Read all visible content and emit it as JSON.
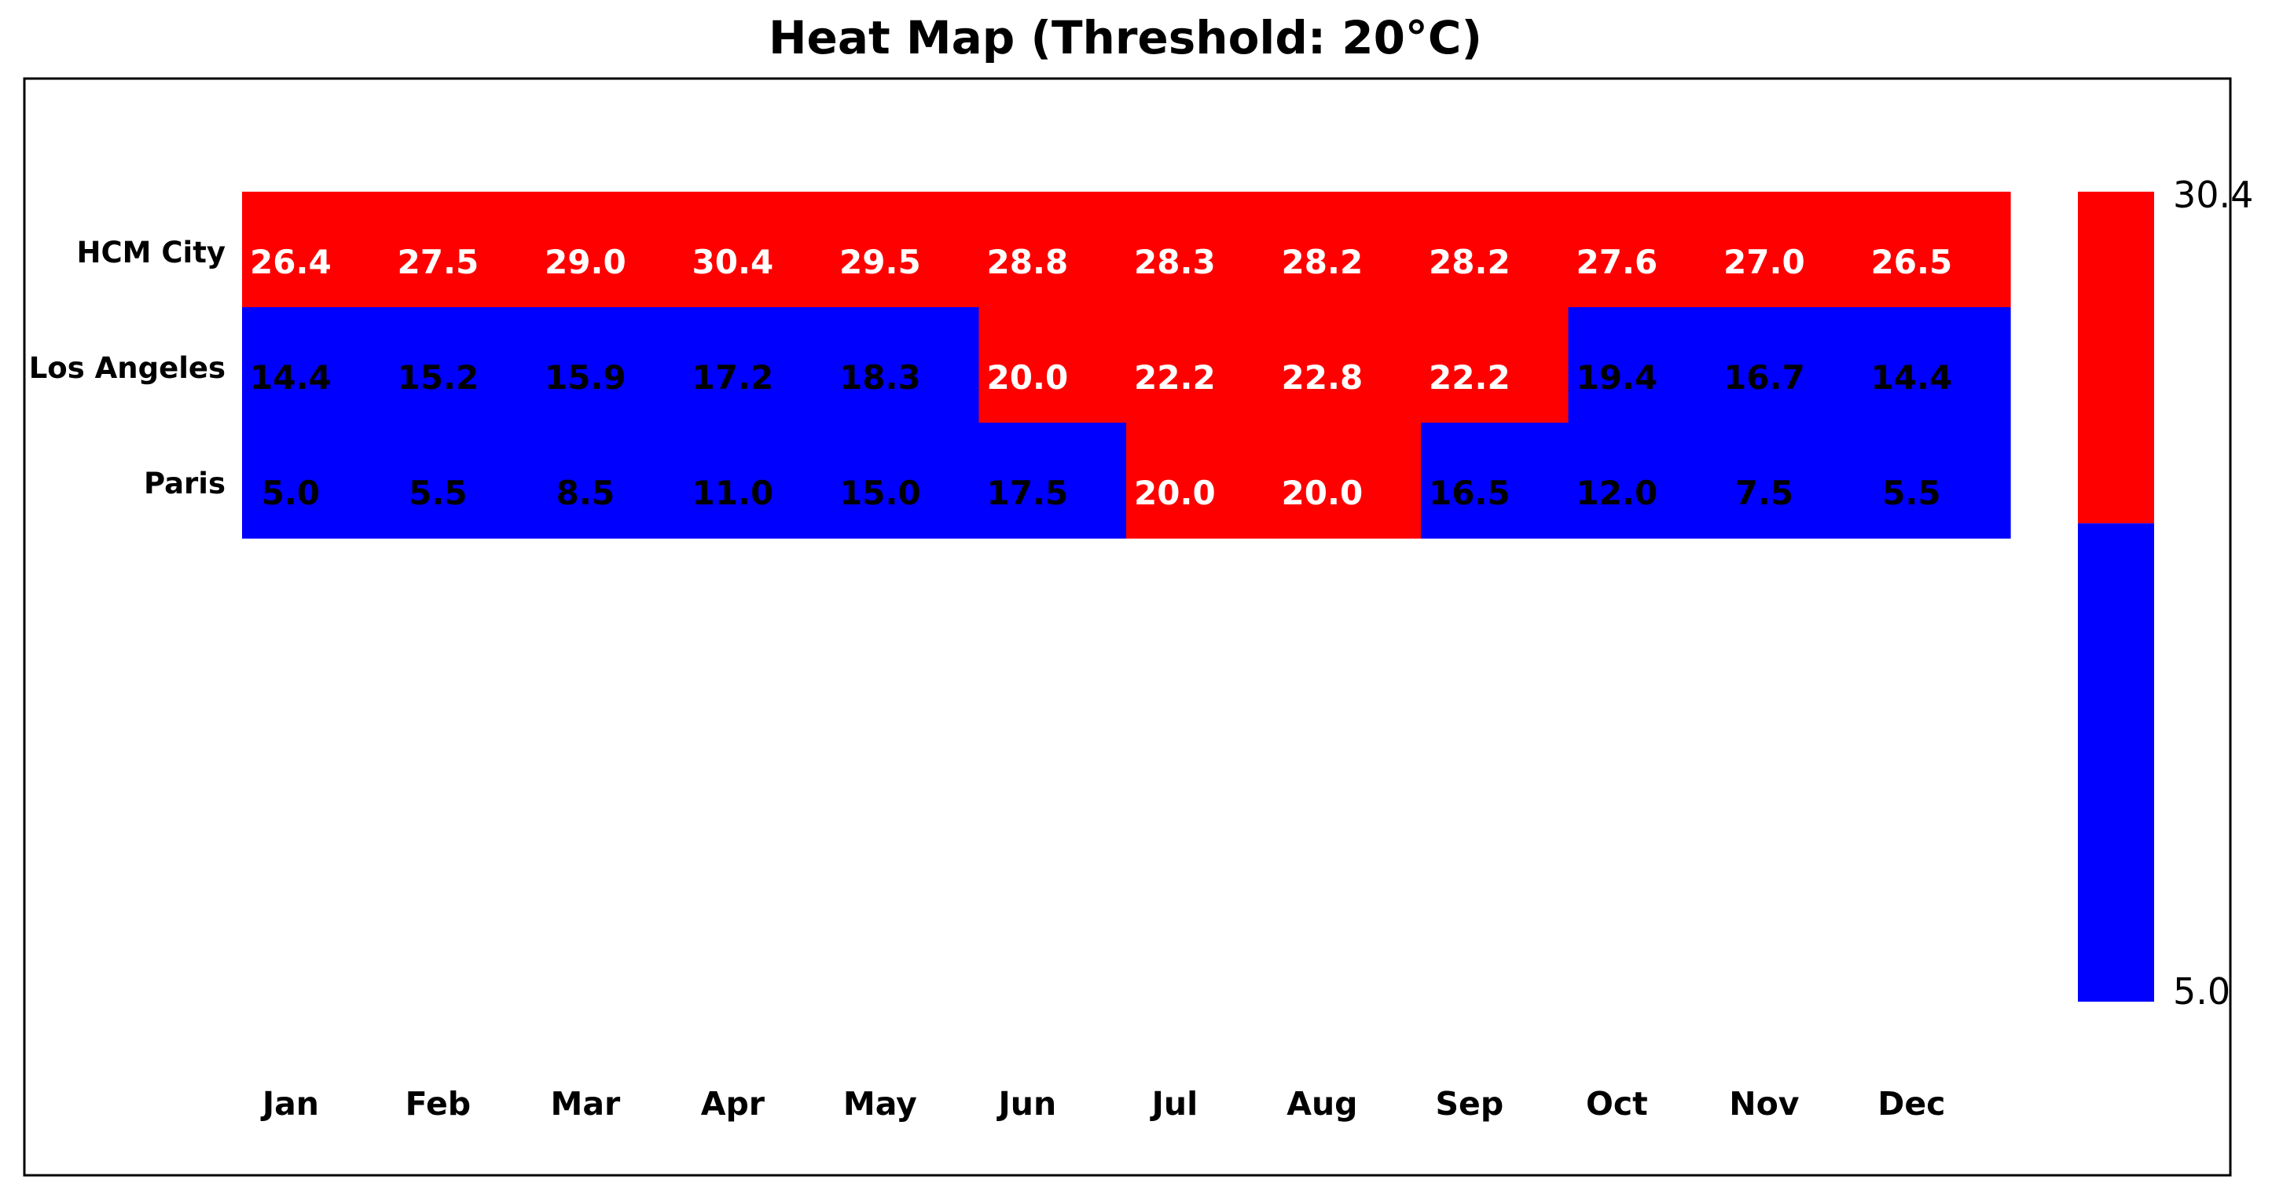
{
  "chart_data": {
    "type": "heatmap",
    "title": "Heat Map (Threshold: 20°C)",
    "threshold": 20,
    "rows": [
      "HCM City",
      "Los Angeles",
      "Paris"
    ],
    "columns": [
      "Jan",
      "Feb",
      "Mar",
      "Apr",
      "May",
      "Jun",
      "Jul",
      "Aug",
      "Sep",
      "Oct",
      "Nov",
      "Dec"
    ],
    "values": [
      [
        26.4,
        27.5,
        29.0,
        30.4,
        29.5,
        28.8,
        28.3,
        28.2,
        28.2,
        27.6,
        27.0,
        26.5
      ],
      [
        14.4,
        15.2,
        15.9,
        17.2,
        18.3,
        20.0,
        22.2,
        22.8,
        22.2,
        19.4,
        16.7,
        14.4
      ],
      [
        5.0,
        5.5,
        8.5,
        11.0,
        15.0,
        17.5,
        20.0,
        20.0,
        16.5,
        12.0,
        7.5,
        5.5
      ]
    ],
    "colorbar": {
      "min": 5.0,
      "max": 30.4,
      "min_label": "5.0",
      "max_label": "30.4"
    },
    "colors": {
      "above_threshold": "#ff0000",
      "below_threshold": "#0000ff",
      "label_on_above": "#ffffff",
      "label_on_below": "#000000",
      "frame": "#000000"
    },
    "grid": false
  }
}
